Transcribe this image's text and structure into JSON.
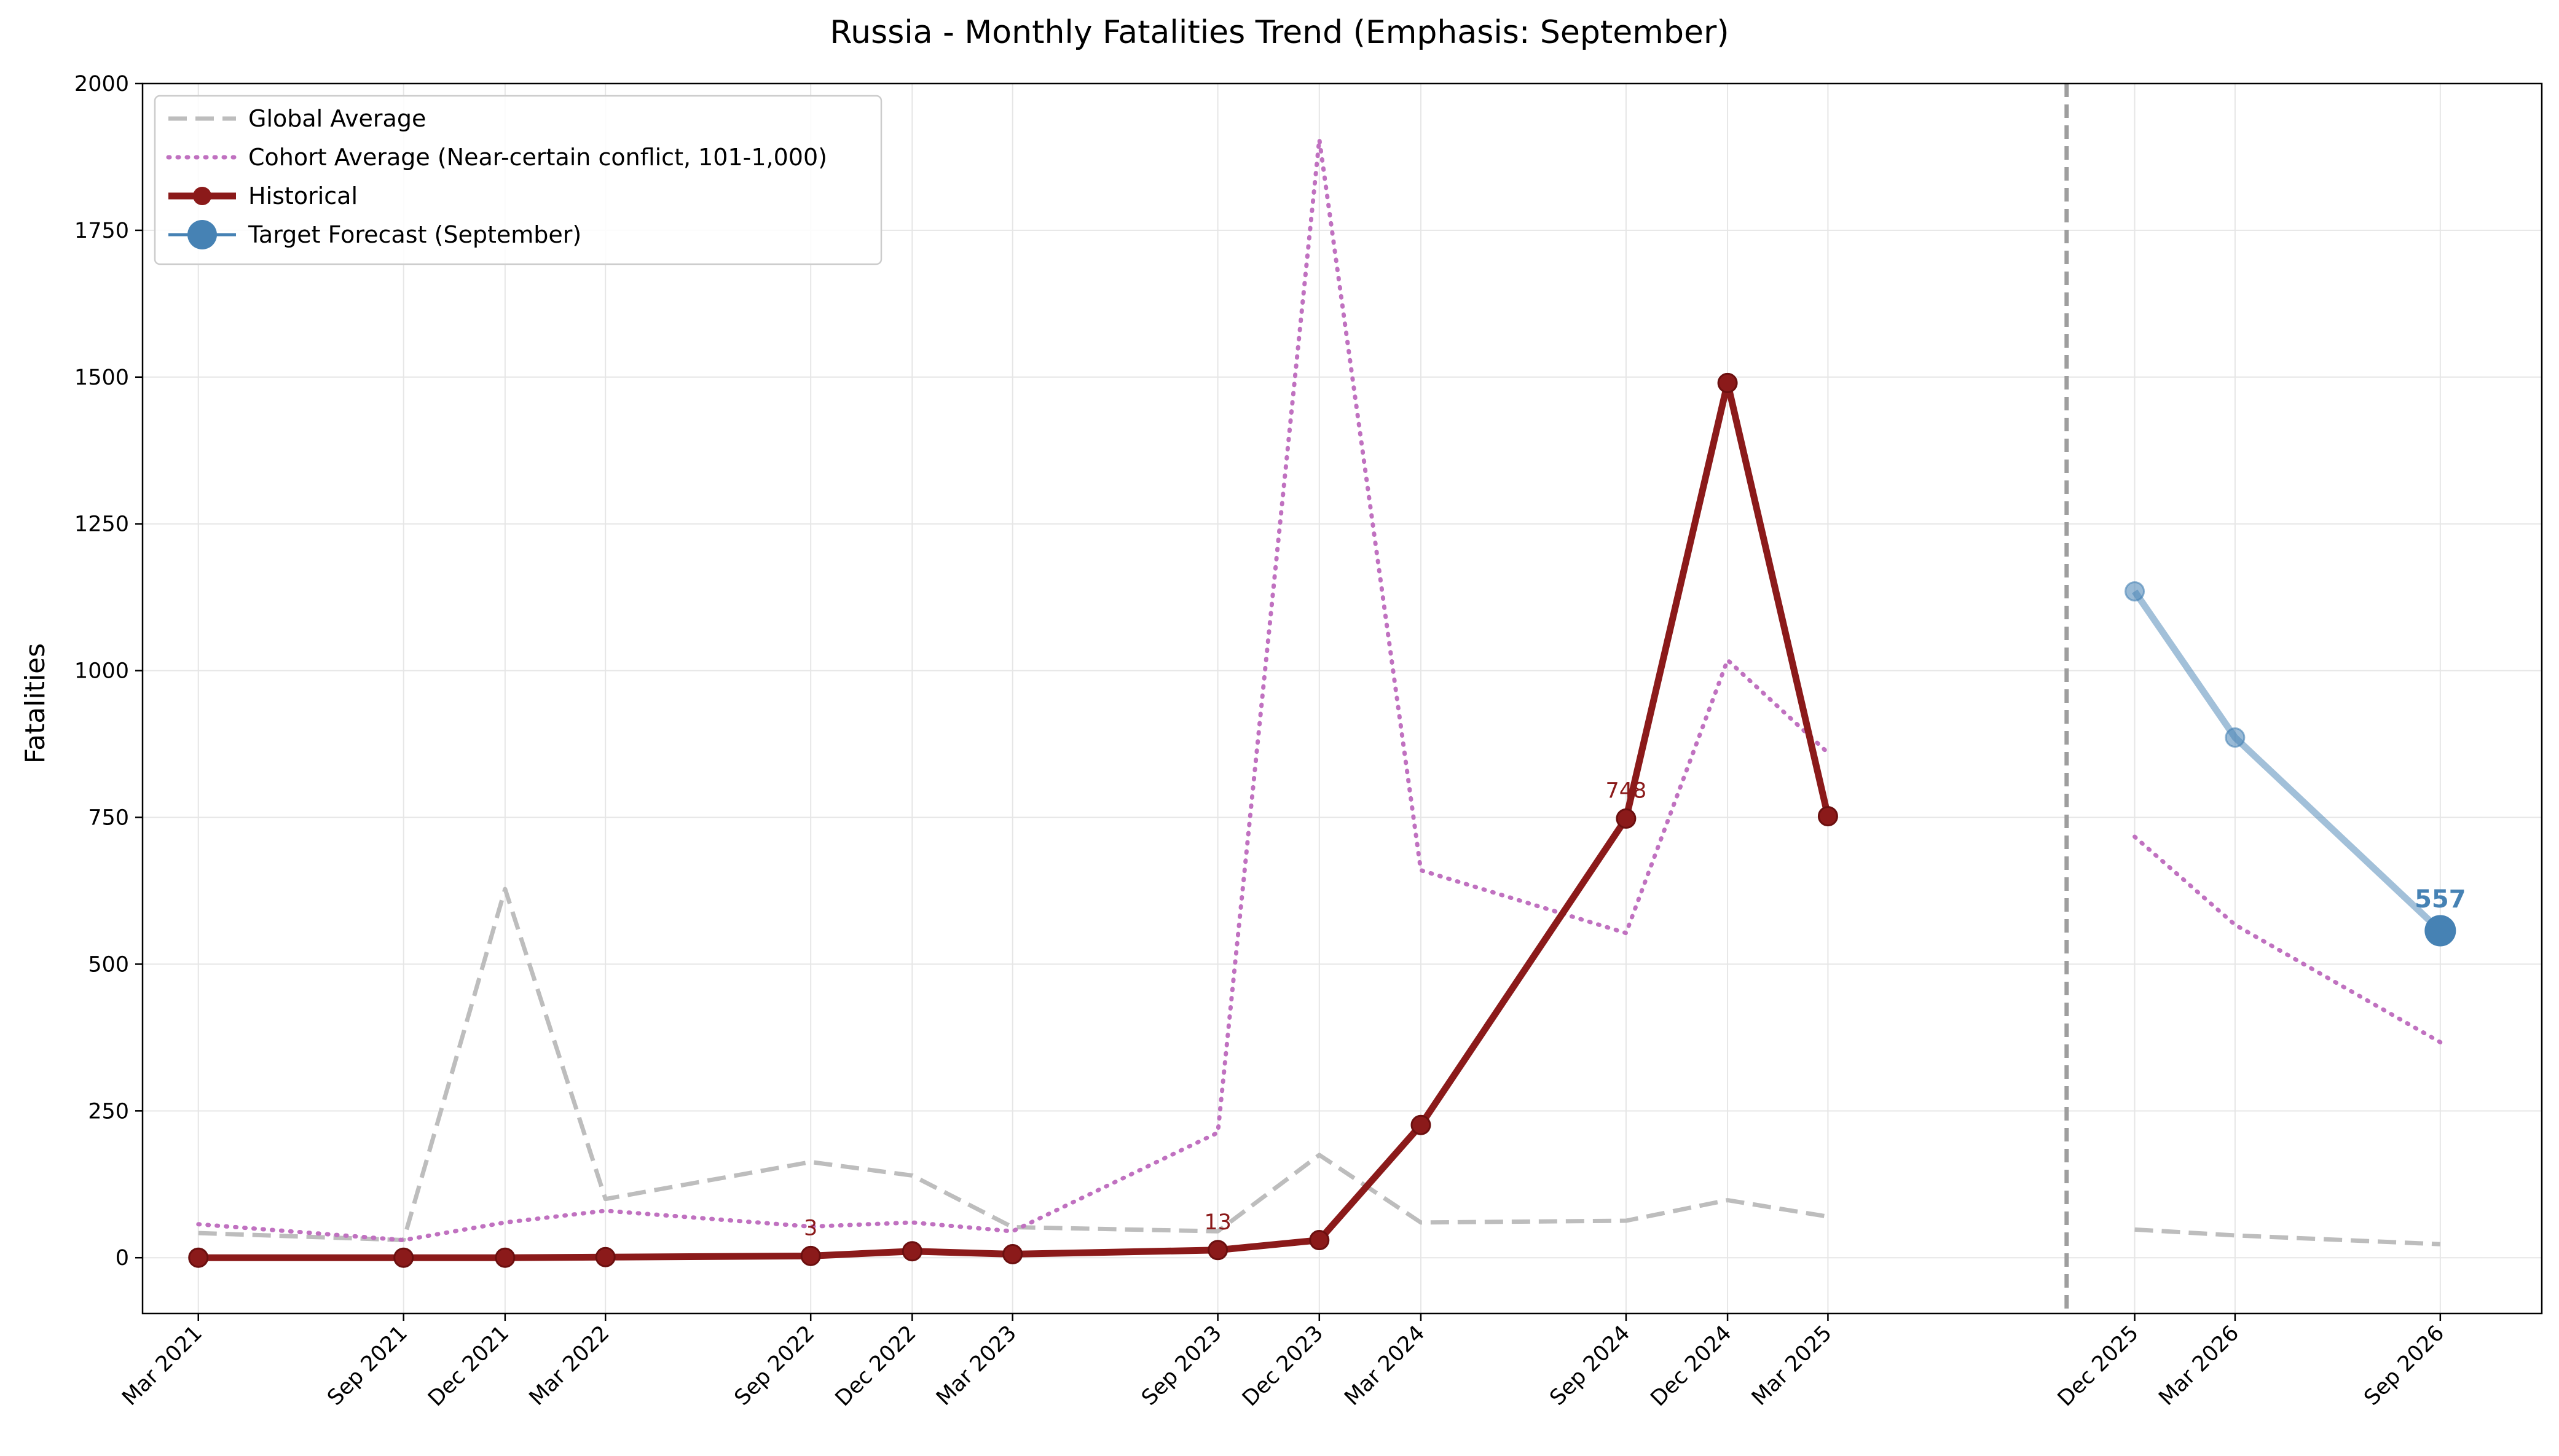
{
  "chart_data": {
    "type": "line",
    "title": "Russia - Monthly Fatalities Trend (Emphasis: September)",
    "ylabel": "Fatalities",
    "xlabel": "",
    "ylim": [
      -95,
      2000
    ],
    "xlim": [
      "2021-01-10",
      "2026-12-01"
    ],
    "yticks": [
      0,
      250,
      500,
      750,
      1000,
      1250,
      1500,
      1750,
      2000
    ],
    "xticks": [
      "2021-03-01",
      "2021-09-01",
      "2021-12-01",
      "2022-03-01",
      "2022-09-01",
      "2022-12-01",
      "2023-03-01",
      "2023-09-01",
      "2023-12-01",
      "2024-03-01",
      "2024-09-01",
      "2024-12-01",
      "2025-03-01",
      "2025-12-01",
      "2026-03-01",
      "2026-09-01"
    ],
    "xtick_labels": [
      "Mar 2021",
      "Sep 2021",
      "Dec 2021",
      "Mar 2022",
      "Sep 2022",
      "Dec 2022",
      "Mar 2023",
      "Sep 2023",
      "Dec 2023",
      "Mar 2024",
      "Sep 2024",
      "Dec 2024",
      "Mar 2025",
      "Dec 2025",
      "Mar 2026",
      "Sep 2026"
    ],
    "grid": true,
    "legend_position": "top-left",
    "forecast_divider": "2025-10-01",
    "series": [
      {
        "name": "Global Average",
        "style": "dashed",
        "color": "#bdbdbd",
        "segments": [
          {
            "x": [
              "2021-03-01",
              "2021-09-01",
              "2021-12-01",
              "2022-03-01",
              "2022-09-01",
              "2022-12-01",
              "2023-03-01",
              "2023-09-01",
              "2023-12-01",
              "2024-03-01",
              "2024-09-01",
              "2024-12-01",
              "2025-03-01"
            ],
            "y": [
              42,
              30,
              628,
              100,
              163,
              140,
              52,
              45,
              175,
              60,
              63,
              98,
              70
            ]
          },
          {
            "x": [
              "2025-12-01",
              "2026-03-01",
              "2026-09-01"
            ],
            "y": [
              48,
              38,
              23
            ]
          }
        ]
      },
      {
        "name": "Cohort Average (Near-certain conflict, 101-1,000)",
        "style": "dotted",
        "color": "#c071c0",
        "segments": [
          {
            "x": [
              "2021-03-01",
              "2021-09-01",
              "2021-12-01",
              "2022-03-01",
              "2022-09-01",
              "2022-12-01",
              "2023-03-01",
              "2023-09-01",
              "2023-12-01",
              "2024-03-01",
              "2024-09-01",
              "2024-12-01",
              "2025-03-01"
            ],
            "y": [
              57,
              30,
              60,
              80,
              53,
              60,
              45,
              213,
              1905,
              660,
              553,
              1018,
              860
            ]
          },
          {
            "x": [
              "2025-12-01",
              "2026-03-01",
              "2026-09-01"
            ],
            "y": [
              717,
              567,
              367
            ]
          }
        ]
      },
      {
        "name": "Historical",
        "style": "solid-markers",
        "color": "#8b1a1a",
        "x": [
          "2021-03-01",
          "2021-09-01",
          "2021-12-01",
          "2022-03-01",
          "2022-09-01",
          "2022-12-01",
          "2023-03-01",
          "2023-09-01",
          "2023-12-01",
          "2024-03-01",
          "2024-09-01",
          "2024-12-01",
          "2025-03-01"
        ],
        "y": [
          0,
          0,
          0,
          1,
          3,
          11,
          6,
          13,
          30,
          226,
          748,
          1490,
          752
        ]
      },
      {
        "name": "Target Forecast (September)",
        "style": "forecast",
        "color": "#4682b4",
        "x": [
          "2025-12-01",
          "2026-03-01",
          "2026-09-01"
        ],
        "y": [
          1135,
          886,
          557
        ]
      }
    ],
    "annotations": [
      {
        "x": "2022-09-01",
        "y": 3,
        "text": "3",
        "color": "#8b1a1a"
      },
      {
        "x": "2023-09-01",
        "y": 13,
        "text": "13",
        "color": "#8b1a1a"
      },
      {
        "x": "2024-09-01",
        "y": 748,
        "text": "748",
        "color": "#8b1a1a"
      },
      {
        "x": "2026-09-01",
        "y": 557,
        "text": "557",
        "color": "#4682b4"
      }
    ]
  }
}
